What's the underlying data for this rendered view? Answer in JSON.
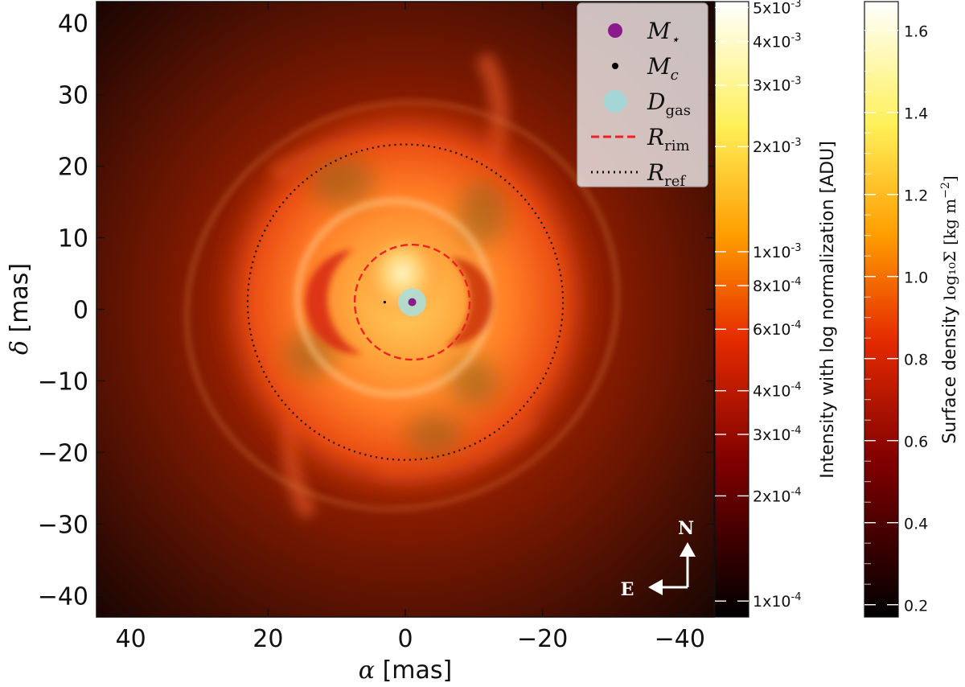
{
  "chart_data": {
    "type": "heatmap",
    "xlabel_symbol": "α",
    "xlabel_unit": "[mas]",
    "ylabel_symbol": "δ",
    "ylabel_unit": "[mas]",
    "xlim": [
      45,
      -45
    ],
    "ylim": [
      -43,
      43
    ],
    "x_ticks": [
      40,
      20,
      0,
      -20,
      -40
    ],
    "x_tick_labels": [
      "40",
      "20",
      "0",
      "−20",
      "−40"
    ],
    "y_ticks": [
      -40,
      -30,
      -20,
      -10,
      0,
      10,
      20,
      30,
      40
    ],
    "y_tick_labels": [
      "−40",
      "−30",
      "−20",
      "−10",
      "0",
      "10",
      "20",
      "30",
      "40"
    ],
    "colormap": "afmhot",
    "star": {
      "x": -1,
      "y": 1
    },
    "companion": {
      "x": 3,
      "y": 1
    },
    "gas_disk": {
      "x": -1,
      "y": 1,
      "radius": 2
    },
    "rim": {
      "x": -1,
      "y": 1,
      "radius": 8.2
    },
    "ref": {
      "x": 0,
      "y": 1,
      "radius": 22.5
    },
    "legend": {
      "position": "top-right",
      "entries": [
        {
          "label": "M",
          "sub": "⋆",
          "marker": "dot",
          "color": "#8b1a8b"
        },
        {
          "label": "M",
          "sub": "c",
          "marker": "small-dot",
          "color": "#000000"
        },
        {
          "label": "D",
          "sub": "gas",
          "marker": "disk",
          "color": "#9fd8d8"
        },
        {
          "label": "R",
          "sub": "rim",
          "marker": "dashed",
          "color": "#ee2222"
        },
        {
          "label": "R",
          "sub": "ref",
          "marker": "dotted",
          "color": "#111111"
        }
      ]
    },
    "compass": {
      "north": "N",
      "east": "E"
    },
    "colorbar_intensity": {
      "label": "Intensity with log normalization [ADU]",
      "scale": "log",
      "range": [
        9e-05,
        0.0052
      ],
      "ticks": [
        0.0001,
        0.0002,
        0.0003,
        0.0004,
        0.0006,
        0.0008,
        0.001,
        0.002,
        0.003,
        0.004,
        0.005
      ],
      "tick_labels": [
        {
          "mant": "1x10",
          "exp": "-4"
        },
        {
          "mant": "2x10",
          "exp": "-4"
        },
        {
          "mant": "3x10",
          "exp": "-4"
        },
        {
          "mant": "4x10",
          "exp": "-4"
        },
        {
          "mant": "6x10",
          "exp": "-4"
        },
        {
          "mant": "8x10",
          "exp": "-4"
        },
        {
          "mant": "1x10",
          "exp": "-3"
        },
        {
          "mant": "2x10",
          "exp": "-3"
        },
        {
          "mant": "3x10",
          "exp": "-3"
        },
        {
          "mant": "4x10",
          "exp": "-3"
        },
        {
          "mant": "5x10",
          "exp": "-3"
        }
      ]
    },
    "colorbar_density": {
      "label": "Surface density",
      "label_math": "log₁₀Σ",
      "label_unit": "[kg m",
      "label_unit_exp": "−2",
      "label_unit_close": "]",
      "scale": "linear",
      "range": [
        0.17,
        1.67
      ],
      "ticks": [
        0.2,
        0.4,
        0.6,
        0.8,
        1.0,
        1.2,
        1.4,
        1.6
      ],
      "tick_labels": [
        "0.2",
        "0.4",
        "0.6",
        "0.8",
        "1.0",
        "1.2",
        "1.4",
        "1.6"
      ]
    }
  }
}
